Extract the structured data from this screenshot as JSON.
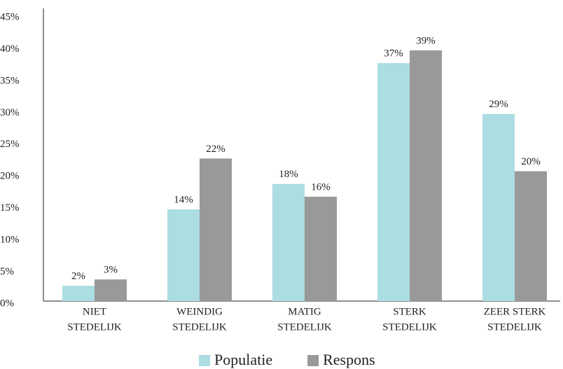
{
  "chart_data": {
    "type": "bar",
    "categories": [
      [
        "NIET",
        "STEDELIJK"
      ],
      [
        "WEINDIG",
        "STEDELIJK"
      ],
      [
        "MATIG",
        "STEDELIJK"
      ],
      [
        "STERK",
        "STEDELIJK"
      ],
      [
        "ZEER STERK",
        "STEDELIJK"
      ]
    ],
    "series": [
      {
        "name": "Populatie",
        "color": "#abdde2",
        "values": [
          2.4,
          14.4,
          18.4,
          37.4,
          29.4
        ],
        "value_labels": [
          "2%",
          "14%",
          "18%",
          "37%",
          "29%"
        ]
      },
      {
        "name": "Respons",
        "color": "#999999",
        "values": [
          3.4,
          22.4,
          16.4,
          39.4,
          20.4
        ],
        "value_labels": [
          "3%",
          "22%",
          "16%",
          "39%",
          "20%"
        ]
      }
    ],
    "ylim": [
      0,
      45
    ],
    "yticks": [
      {
        "value": 0,
        "label": "0%"
      },
      {
        "value": 5,
        "label": "5%"
      },
      {
        "value": 10,
        "label": "10%"
      },
      {
        "value": 15,
        "label": "15%"
      },
      {
        "value": 20,
        "label": "20%"
      },
      {
        "value": 25,
        "label": "25%"
      },
      {
        "value": 30,
        "label": "30%"
      },
      {
        "value": 35,
        "label": "35%"
      },
      {
        "value": 40,
        "label": "40%"
      },
      {
        "value": 45,
        "label": "45%"
      }
    ],
    "grid": false,
    "legend": "bottom"
  }
}
